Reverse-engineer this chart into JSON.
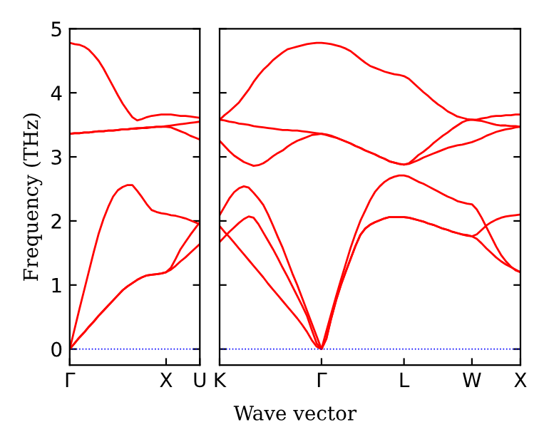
{
  "chart_data": [
    {
      "type": "line",
      "ylabel": "Frequency (THz)",
      "ylim": [
        -0.25,
        5
      ],
      "categories": [
        "Γ",
        null,
        null,
        null,
        null,
        null,
        null,
        null,
        null,
        null,
        null,
        null,
        null,
        null,
        null,
        null,
        null,
        null,
        null,
        null,
        "X",
        null,
        null,
        null,
        null,
        null,
        null,
        "U"
      ],
      "yticks": [
        0,
        1,
        2,
        3,
        4,
        5
      ],
      "grid": false,
      "legend": false,
      "marker": "none",
      "line_style": "solid",
      "ref_lines": [
        {
          "axis": "y",
          "value": 0,
          "color": "#0000ff",
          "line_style": "dotted"
        }
      ],
      "series": [
        {
          "color": "#ff0000",
          "values": [
            0.0,
            0.09,
            0.18,
            0.26,
            0.35,
            0.43,
            0.52,
            0.6,
            0.68,
            0.76,
            0.84,
            0.92,
            0.98,
            1.03,
            1.08,
            1.12,
            1.15,
            1.16,
            1.17,
            1.18,
            1.2,
            1.24,
            1.3,
            1.37,
            1.43,
            1.5,
            1.57,
            1.64
          ]
        },
        {
          "color": "#ff0000",
          "values": [
            0.0,
            0.09,
            0.18,
            0.26,
            0.35,
            0.43,
            0.52,
            0.6,
            0.68,
            0.76,
            0.84,
            0.92,
            0.98,
            1.03,
            1.08,
            1.12,
            1.15,
            1.16,
            1.17,
            1.18,
            1.2,
            1.27,
            1.41,
            1.56,
            1.67,
            1.78,
            1.88,
            1.98
          ]
        },
        {
          "color": "#ff0000",
          "values": [
            0.0,
            0.31,
            0.62,
            0.92,
            1.22,
            1.52,
            1.8,
            2.03,
            2.22,
            2.38,
            2.48,
            2.53,
            2.56,
            2.56,
            2.47,
            2.37,
            2.26,
            2.17,
            2.14,
            2.12,
            2.11,
            2.09,
            2.08,
            2.06,
            2.04,
            2.01,
            1.98,
            1.95
          ]
        },
        {
          "color": "#ff0000",
          "values": [
            3.36,
            3.37,
            3.37,
            3.38,
            3.38,
            3.39,
            3.4,
            3.4,
            3.41,
            3.41,
            3.42,
            3.43,
            3.43,
            3.44,
            3.45,
            3.45,
            3.46,
            3.46,
            3.47,
            3.47,
            3.47,
            3.46,
            3.43,
            3.4,
            3.37,
            3.33,
            3.3,
            3.27
          ]
        },
        {
          "color": "#ff0000",
          "values": [
            3.36,
            3.37,
            3.37,
            3.38,
            3.38,
            3.39,
            3.4,
            3.4,
            3.41,
            3.41,
            3.42,
            3.43,
            3.43,
            3.44,
            3.44,
            3.45,
            3.45,
            3.46,
            3.47,
            3.47,
            3.48,
            3.49,
            3.5,
            3.51,
            3.52,
            3.53,
            3.54,
            3.55
          ]
        },
        {
          "color": "#ff0000",
          "values": [
            4.78,
            4.76,
            4.75,
            4.72,
            4.67,
            4.59,
            4.5,
            4.38,
            4.24,
            4.1,
            3.96,
            3.83,
            3.72,
            3.62,
            3.57,
            3.59,
            3.62,
            3.64,
            3.65,
            3.66,
            3.66,
            3.66,
            3.65,
            3.64,
            3.64,
            3.63,
            3.62,
            3.61
          ]
        }
      ]
    },
    {
      "type": "line",
      "xlabel": "Wave vector",
      "ylim": [
        -0.25,
        5
      ],
      "categories": [
        "K",
        null,
        null,
        null,
        null,
        null,
        null,
        null,
        null,
        null,
        null,
        null,
        null,
        null,
        null,
        null,
        null,
        null,
        null,
        null,
        null,
        "Γ",
        null,
        null,
        null,
        null,
        null,
        null,
        null,
        null,
        null,
        null,
        null,
        null,
        null,
        null,
        null,
        null,
        "L",
        null,
        null,
        null,
        null,
        null,
        null,
        null,
        null,
        null,
        null,
        null,
        null,
        null,
        "W",
        null,
        null,
        null,
        null,
        null,
        null,
        null,
        null,
        null,
        "X"
      ],
      "yticks": [
        0,
        1,
        2,
        3,
        4,
        5
      ],
      "tick_labels": "x",
      "grid": false,
      "legend": false,
      "marker": "none",
      "line_style": "solid",
      "ref_lines": [
        {
          "axis": "y",
          "value": 0,
          "color": "#0000ff",
          "line_style": "dotted"
        }
      ],
      "series": [
        {
          "color": "#ff0000",
          "values": [
            2.09,
            2.22,
            2.35,
            2.45,
            2.51,
            2.54,
            2.52,
            2.44,
            2.35,
            2.25,
            2.1,
            1.93,
            1.75,
            1.58,
            1.38,
            1.18,
            1.0,
            0.8,
            0.6,
            0.4,
            0.2,
            0.0,
            0.28,
            0.55,
            0.82,
            1.08,
            1.33,
            1.58,
            1.8,
            2.0,
            2.16,
            2.32,
            2.45,
            2.54,
            2.61,
            2.66,
            2.69,
            2.71,
            2.71,
            2.69,
            2.65,
            2.61,
            2.58,
            2.54,
            2.5,
            2.46,
            2.42,
            2.38,
            2.35,
            2.31,
            2.29,
            2.27,
            2.26,
            2.18,
            2.05,
            1.9,
            1.75,
            1.6,
            1.47,
            1.37,
            1.29,
            1.23,
            1.2
          ]
        },
        {
          "color": "#ff0000",
          "values": [
            1.67,
            1.75,
            1.83,
            1.9,
            1.97,
            2.03,
            2.07,
            2.05,
            1.95,
            1.82,
            1.69,
            1.56,
            1.42,
            1.27,
            1.13,
            0.98,
            0.83,
            0.68,
            0.52,
            0.3,
            0.09,
            0.0,
            0.16,
            0.48,
            0.76,
            1.0,
            1.21,
            1.41,
            1.61,
            1.78,
            1.88,
            1.94,
            1.98,
            2.01,
            2.04,
            2.06,
            2.06,
            2.06,
            2.06,
            2.05,
            2.03,
            2.01,
            1.99,
            1.96,
            1.94,
            1.91,
            1.88,
            1.86,
            1.83,
            1.81,
            1.79,
            1.77,
            1.76,
            1.79,
            1.86,
            1.93,
            1.98,
            2.02,
            2.05,
            2.07,
            2.08,
            2.09,
            2.1
          ]
        },
        {
          "color": "#ff0000",
          "values": [
            1.92,
            1.83,
            1.75,
            1.66,
            1.57,
            1.48,
            1.39,
            1.3,
            1.21,
            1.12,
            1.02,
            0.93,
            0.84,
            0.75,
            0.66,
            0.57,
            0.48,
            0.38,
            0.27,
            0.14,
            0.04,
            0.0,
            0.16,
            0.48,
            0.76,
            1.0,
            1.21,
            1.41,
            1.61,
            1.78,
            1.88,
            1.94,
            1.98,
            2.01,
            2.04,
            2.06,
            2.06,
            2.06,
            2.06,
            2.05,
            2.03,
            2.01,
            1.99,
            1.96,
            1.94,
            1.91,
            1.88,
            1.86,
            1.83,
            1.81,
            1.79,
            1.78,
            1.76,
            1.72,
            1.65,
            1.57,
            1.5,
            1.43,
            1.37,
            1.32,
            1.28,
            1.24,
            1.2
          ]
        },
        {
          "color": "#ff0000",
          "values": [
            3.58,
            3.65,
            3.71,
            3.78,
            3.85,
            3.95,
            4.05,
            4.17,
            4.27,
            4.36,
            4.43,
            4.51,
            4.57,
            4.63,
            4.68,
            4.7,
            4.72,
            4.74,
            4.76,
            4.77,
            4.78,
            4.78,
            4.77,
            4.76,
            4.74,
            4.72,
            4.69,
            4.65,
            4.59,
            4.53,
            4.47,
            4.42,
            4.39,
            4.36,
            4.33,
            4.31,
            4.29,
            4.28,
            4.26,
            4.22,
            4.15,
            4.08,
            4.01,
            3.95,
            3.88,
            3.82,
            3.77,
            3.71,
            3.67,
            3.63,
            3.61,
            3.59,
            3.58,
            3.58,
            3.6,
            3.61,
            3.63,
            3.64,
            3.64,
            3.65,
            3.65,
            3.66,
            3.66
          ]
        },
        {
          "color": "#ff0000",
          "values": [
            3.58,
            3.57,
            3.55,
            3.54,
            3.52,
            3.51,
            3.5,
            3.48,
            3.47,
            3.46,
            3.45,
            3.44,
            3.43,
            3.42,
            3.42,
            3.41,
            3.41,
            3.4,
            3.39,
            3.38,
            3.37,
            3.36,
            3.34,
            3.32,
            3.3,
            3.27,
            3.24,
            3.21,
            3.17,
            3.14,
            3.1,
            3.07,
            3.04,
            3.0,
            2.97,
            2.93,
            2.91,
            2.89,
            2.88,
            2.9,
            2.96,
            3.03,
            3.08,
            3.14,
            3.21,
            3.27,
            3.33,
            3.38,
            3.44,
            3.49,
            3.54,
            3.57,
            3.58,
            3.57,
            3.56,
            3.54,
            3.52,
            3.5,
            3.49,
            3.49,
            3.48,
            3.48,
            3.47
          ]
        },
        {
          "color": "#ff0000",
          "values": [
            3.25,
            3.17,
            3.09,
            3.02,
            2.97,
            2.92,
            2.89,
            2.86,
            2.87,
            2.9,
            2.95,
            3.01,
            3.06,
            3.1,
            3.16,
            3.21,
            3.25,
            3.28,
            3.31,
            3.34,
            3.35,
            3.36,
            3.35,
            3.33,
            3.3,
            3.27,
            3.24,
            3.21,
            3.17,
            3.14,
            3.1,
            3.07,
            3.04,
            3.0,
            2.97,
            2.93,
            2.91,
            2.89,
            2.88,
            2.89,
            2.92,
            2.95,
            2.99,
            3.02,
            3.05,
            3.08,
            3.11,
            3.14,
            3.16,
            3.18,
            3.19,
            3.21,
            3.23,
            3.26,
            3.29,
            3.33,
            3.36,
            3.39,
            3.41,
            3.43,
            3.44,
            3.46,
            3.47
          ]
        }
      ]
    }
  ]
}
